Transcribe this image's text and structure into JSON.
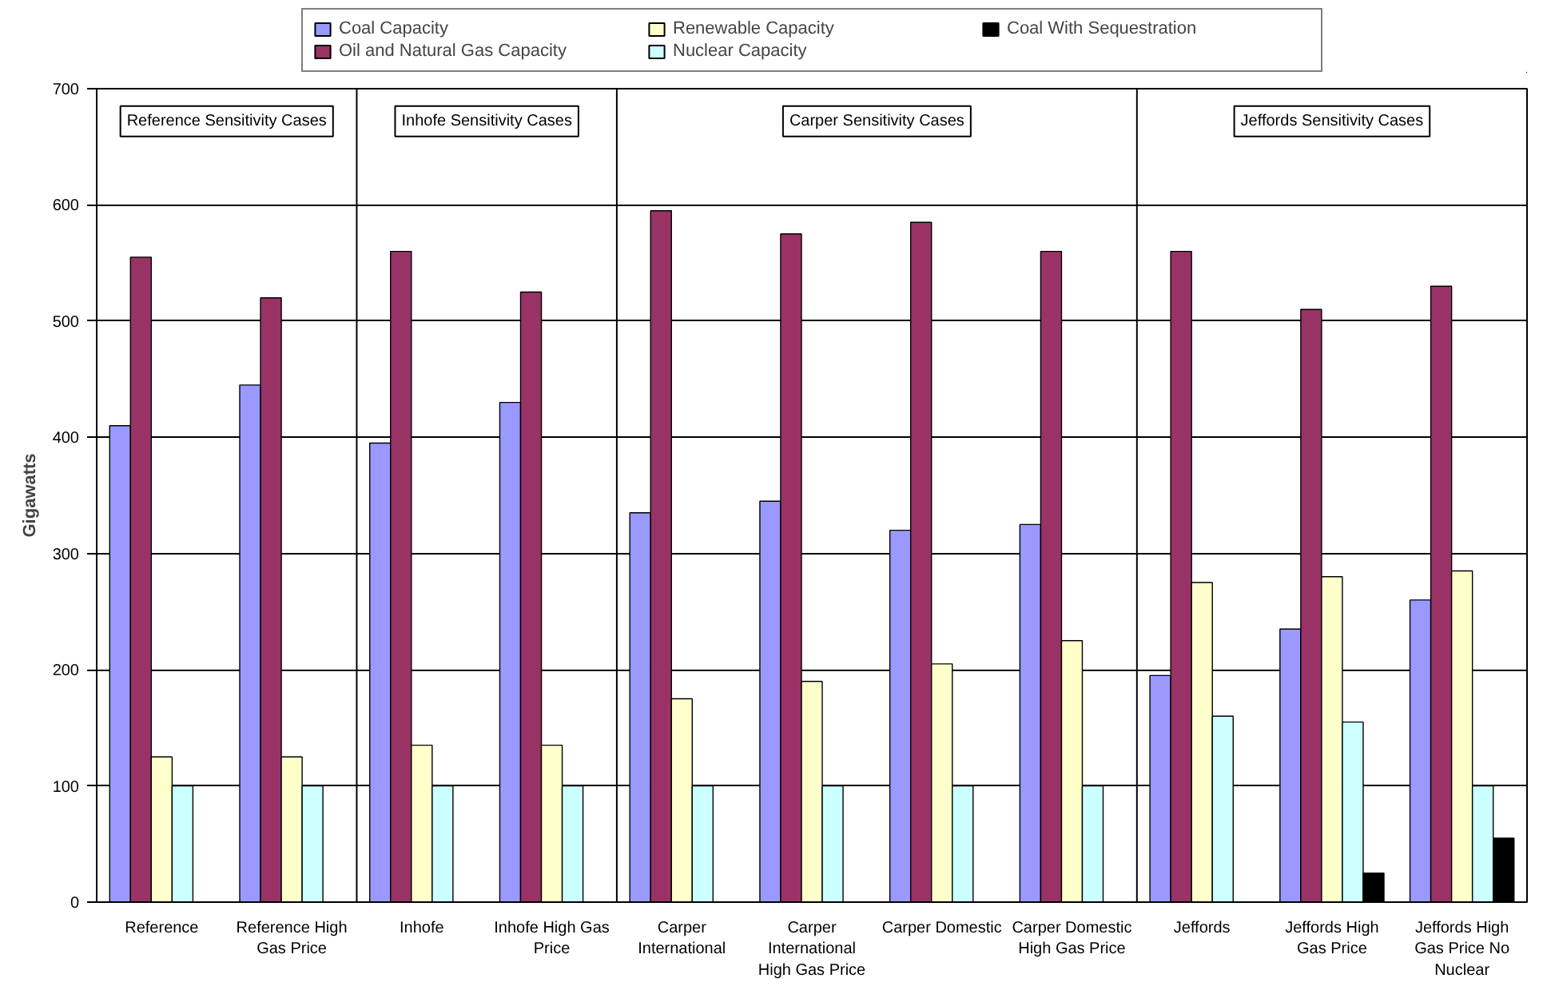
{
  "chart_data": {
    "type": "bar",
    "ylabel": "Gigawatts",
    "categories": [
      "Reference",
      "Reference High Gas Price",
      "Inhofe",
      "Inhofe High Gas Price",
      "Carper International",
      "Carper International High Gas Price",
      "Carper Domestic",
      "Carper Domestic High Gas Price",
      "Jeffords",
      "Jeffords High Gas Price",
      "Jeffords High Gas Price No Nuclear"
    ],
    "series": [
      {
        "name": "Coal Capacity",
        "color": "#9999ff",
        "values": [
          410,
          445,
          395,
          430,
          335,
          345,
          320,
          325,
          195,
          235,
          260
        ]
      },
      {
        "name": "Oil and Natural Gas Capacity",
        "color": "#993366",
        "values": [
          555,
          520,
          560,
          525,
          595,
          575,
          585,
          560,
          560,
          510,
          530
        ]
      },
      {
        "name": "Renewable Capacity",
        "color": "#ffffcc",
        "values": [
          125,
          125,
          135,
          135,
          175,
          190,
          205,
          225,
          275,
          280,
          285
        ]
      },
      {
        "name": "Nuclear Capacity",
        "color": "#ccffff",
        "values": [
          100,
          100,
          100,
          100,
          100,
          100,
          100,
          100,
          160,
          155,
          100
        ]
      },
      {
        "name": "Coal With Sequestration",
        "color": "#000000",
        "values": [
          0,
          0,
          0,
          0,
          0,
          0,
          0,
          0,
          0,
          25,
          55
        ]
      }
    ],
    "ylim": [
      0,
      700
    ],
    "yticks": [
      0,
      100,
      200,
      300,
      400,
      500,
      600,
      700
    ],
    "grid": "y",
    "legend": "top",
    "annotations": [
      "Reference Sensitivity Cases",
      "Inhofe Sensitivity Cases",
      "Carper Sensitivity Cases",
      "Jeffords Sensitivity Cases"
    ]
  }
}
